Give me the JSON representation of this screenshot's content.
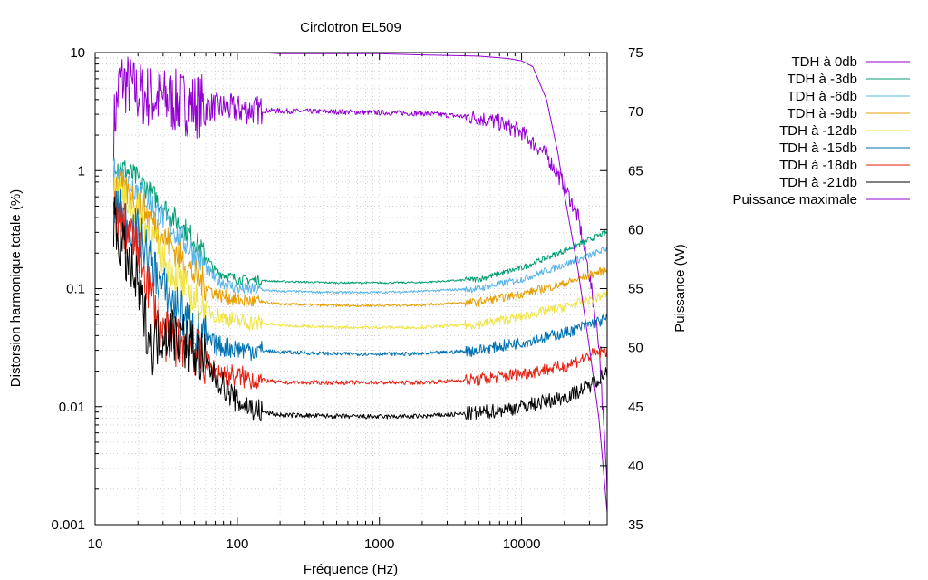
{
  "chart_data": {
    "type": "line",
    "title": "Circlotron EL509",
    "xlabel": "Fréquence (Hz)",
    "ylabel": "Distorsion harmonique totale (%)",
    "y2label": "Puissance (W)",
    "xscale": "log",
    "yscale": "log",
    "xlim": [
      10,
      40000
    ],
    "ylim": [
      0.001,
      10
    ],
    "y2lim": [
      35,
      75
    ],
    "xticks": [
      {
        "v": 10,
        "label": "10"
      },
      {
        "v": 100,
        "label": "100"
      },
      {
        "v": 1000,
        "label": "1000"
      },
      {
        "v": 10000,
        "label": "10000"
      }
    ],
    "yticks": [
      {
        "v": 10,
        "label": "10"
      },
      {
        "v": 1,
        "label": "1"
      },
      {
        "v": 0.1,
        "label": "0.1"
      },
      {
        "v": 0.01,
        "label": "0.01"
      },
      {
        "v": 0.001,
        "label": "0.001"
      }
    ],
    "y2ticks": [
      {
        "v": 75,
        "label": "75"
      },
      {
        "v": 70,
        "label": "70"
      },
      {
        "v": 65,
        "label": "65"
      },
      {
        "v": 60,
        "label": "60"
      },
      {
        "v": 55,
        "label": "55"
      },
      {
        "v": 50,
        "label": "50"
      },
      {
        "v": 45,
        "label": "45"
      },
      {
        "v": 40,
        "label": "40"
      },
      {
        "v": 35,
        "label": "35"
      }
    ],
    "grid": true,
    "legend_position": "outside-top-right",
    "series": [
      {
        "name": "TDH à 0db",
        "color": "#9400d3",
        "axis": "y",
        "noise": 0.28,
        "x": [
          13.5,
          15,
          20,
          30,
          50,
          100,
          200,
          500,
          1000,
          2000,
          3000,
          5000,
          7000,
          10000,
          15000,
          20000,
          25000,
          30000,
          35000,
          40000
        ],
        "y": [
          2.3,
          6.0,
          4.5,
          4.0,
          3.6,
          3.3,
          3.2,
          3.15,
          3.1,
          3.05,
          2.95,
          2.8,
          2.55,
          2.1,
          1.35,
          0.75,
          0.4,
          0.13,
          0.035,
          0.002
        ]
      },
      {
        "name": "TDH à -3db",
        "color": "#009e73",
        "axis": "y",
        "noise": 0.1,
        "x": [
          13.5,
          20,
          30,
          50,
          70,
          100,
          200,
          500,
          1000,
          2000,
          5000,
          10000,
          20000,
          30000,
          40000
        ],
        "y": [
          1.2,
          0.85,
          0.5,
          0.26,
          0.14,
          0.12,
          0.115,
          0.112,
          0.112,
          0.113,
          0.12,
          0.15,
          0.21,
          0.26,
          0.3
        ]
      },
      {
        "name": "TDH à -6db",
        "color": "#56b4e9",
        "axis": "y",
        "noise": 0.12,
        "x": [
          13.5,
          20,
          30,
          50,
          70,
          100,
          200,
          500,
          1000,
          2000,
          5000,
          10000,
          20000,
          30000,
          40000
        ],
        "y": [
          1.0,
          0.7,
          0.4,
          0.2,
          0.12,
          0.1,
          0.095,
          0.093,
          0.093,
          0.095,
          0.1,
          0.12,
          0.16,
          0.19,
          0.22
        ]
      },
      {
        "name": "TDH à -9db",
        "color": "#e69f00",
        "axis": "y",
        "noise": 0.14,
        "x": [
          13.5,
          20,
          30,
          50,
          70,
          100,
          200,
          500,
          1000,
          2000,
          5000,
          10000,
          20000,
          30000,
          40000
        ],
        "y": [
          0.8,
          0.55,
          0.28,
          0.13,
          0.09,
          0.08,
          0.074,
          0.072,
          0.072,
          0.073,
          0.077,
          0.09,
          0.11,
          0.13,
          0.145
        ]
      },
      {
        "name": "TDH à -12db",
        "color": "#f0e442",
        "axis": "y",
        "noise": 0.16,
        "x": [
          13.5,
          20,
          30,
          50,
          70,
          100,
          200,
          500,
          1000,
          2000,
          5000,
          10000,
          20000,
          30000,
          40000
        ],
        "y": [
          0.7,
          0.45,
          0.18,
          0.08,
          0.06,
          0.053,
          0.049,
          0.047,
          0.047,
          0.047,
          0.05,
          0.058,
          0.07,
          0.08,
          0.09
        ]
      },
      {
        "name": "TDH à -15db",
        "color": "#0072b2",
        "axis": "y",
        "noise": 0.2,
        "x": [
          13.5,
          20,
          30,
          50,
          70,
          100,
          200,
          500,
          1000,
          2000,
          5000,
          10000,
          20000,
          30000,
          40000
        ],
        "y": [
          0.5,
          0.3,
          0.1,
          0.045,
          0.033,
          0.031,
          0.029,
          0.028,
          0.028,
          0.028,
          0.03,
          0.035,
          0.042,
          0.05,
          0.055
        ]
      },
      {
        "name": "TDH à -18db",
        "color": "#e51e10",
        "axis": "y",
        "noise": 0.22,
        "x": [
          13.5,
          20,
          30,
          50,
          70,
          100,
          200,
          500,
          1000,
          2000,
          5000,
          10000,
          20000,
          30000,
          40000
        ],
        "y": [
          0.45,
          0.22,
          0.04,
          0.03,
          0.02,
          0.018,
          0.016,
          0.016,
          0.016,
          0.016,
          0.017,
          0.019,
          0.022,
          0.027,
          0.03
        ]
      },
      {
        "name": "TDH à -21db",
        "color": "#000000",
        "axis": "y",
        "noise": 0.25,
        "x": [
          13.5,
          20,
          25,
          30,
          40,
          50,
          70,
          100,
          150,
          200,
          500,
          1000,
          2000,
          5000,
          10000,
          20000,
          30000,
          40000
        ],
        "y": [
          0.35,
          0.1,
          0.032,
          0.045,
          0.04,
          0.03,
          0.018,
          0.011,
          0.009,
          0.0085,
          0.0083,
          0.0082,
          0.0083,
          0.0088,
          0.01,
          0.012,
          0.015,
          0.02
        ]
      },
      {
        "name": "Puissance maximale",
        "color": "#9400d3",
        "axis": "y2",
        "noise": 0,
        "x": [
          100,
          150,
          200,
          500,
          1000,
          2000,
          5000,
          8000,
          10000,
          12000,
          15000,
          18000,
          20000,
          25000,
          30000,
          35000,
          40000
        ],
        "y": [
          75,
          75,
          74.9,
          74.9,
          74.9,
          74.8,
          74.7,
          74.5,
          74.3,
          73.8,
          71,
          66.5,
          63,
          56.5,
          50,
          44,
          36
        ]
      }
    ]
  }
}
